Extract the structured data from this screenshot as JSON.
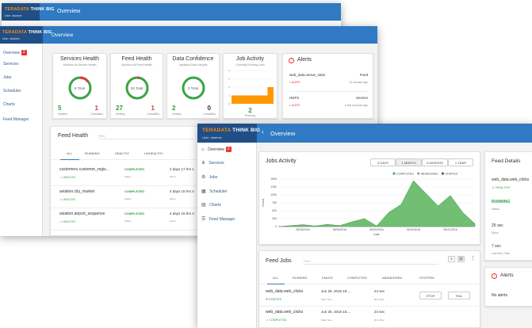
{
  "brand": {
    "name1": "TERADATA",
    "name2": "THINK BIG"
  },
  "user": "User: dladmin",
  "back_window": {
    "header_title": "Overview"
  },
  "mid_window": {
    "header_title": "Overview",
    "nav": [
      {
        "label": "Overview",
        "badge": "2"
      },
      {
        "label": "Services"
      },
      {
        "label": "Jobs"
      },
      {
        "label": "Scheduler"
      },
      {
        "label": "Charts"
      },
      {
        "label": "Feed Manager"
      }
    ],
    "services_health": {
      "title": "Services Health",
      "subtitle": "Monitors All Service Health",
      "center": "6 Total",
      "healthy": "5",
      "unhealthy": "1",
      "healthy_label": "Healthy",
      "unhealthy_label": "Unhealthy"
    },
    "feed_health_card": {
      "title": "Feed Health",
      "subtitle": "Monitors All Feed Health",
      "center": "28 Total",
      "healthy": "27",
      "unhealthy": "1",
      "healthy_label": "Healthy",
      "unhealthy_label": "Unhealthy"
    },
    "data_confidence": {
      "title": "Data Confidence",
      "subtitle": "Validates Data Integrity",
      "center": "2 Total",
      "healthy": "2",
      "unhealthy": "0",
      "healthy_label": "Healthy",
      "unhealthy_label": "Unhealthy"
    },
    "job_activity": {
      "title": "Job Activity",
      "subtitle": "Currently Running Jobs",
      "value": "2",
      "label": "Running"
    },
    "alerts": {
      "title": "Alerts",
      "items": [
        {
          "name": "web_data.venue_stats",
          "type": "Feed",
          "alert": "1 ALERT",
          "time": "10 minutes ago"
        },
        {
          "name": "HDFS",
          "type": "Service",
          "alert": "1 ALERT",
          "time": "a few seconds ago"
        }
      ]
    },
    "feed_health": {
      "title": "Feed Health",
      "filter_placeholder": "Filter",
      "tabs": [
        "ALL",
        "RUNNING",
        "HEALTHY",
        "UNHEALTHY"
      ],
      "rows": [
        {
          "name": "customers.customer_regis...",
          "health": "HEALTHY",
          "status": "COMPLETED",
          "status_label": "Status",
          "since": "2 days 17 hrs 1",
          "since_label": "Since"
        },
        {
          "name": "aviation.city_market",
          "health": "HEALTHY",
          "status": "COMPLETED",
          "status_label": "Status",
          "since": "4 days 15 hrs 4",
          "since_label": "Since"
        },
        {
          "name": "aviation.airport_sequence",
          "health": "HEALTHY",
          "status": "COMPLETED",
          "status_label": "Status",
          "since": "4 days 15 hrs 4",
          "since_label": "Since"
        }
      ]
    }
  },
  "front_window": {
    "header_title": "Overview",
    "nav": [
      {
        "label": "Overview",
        "badge": "2"
      },
      {
        "label": "Services"
      },
      {
        "label": "Jobs"
      },
      {
        "label": "Scheduler"
      },
      {
        "label": "Charts"
      },
      {
        "label": "Feed Manager"
      }
    ],
    "jobs_activity": {
      "title": "Jobs Activity",
      "ranges": [
        "3 DAYS",
        "1 MONTH",
        "3 MONTHS",
        "1 YEAR"
      ],
      "legend": [
        "COMPLETED",
        "ABANDONED",
        "STARTED"
      ]
    },
    "feed_jobs": {
      "title": "Feed Jobs",
      "filter_placeholder": "Filter",
      "tabs": [
        "ALL",
        "RUNNING",
        "FAILED",
        "COMPLETED",
        "ABANDONED",
        "STOPPED"
      ],
      "rows": [
        {
          "name": "web_data.web_clicks",
          "status": "STARTED",
          "start": "Jun 26, 2016 15:...",
          "start_label": "Start Time",
          "run": "24 sec",
          "run_label": "Run Time",
          "stop": "STOP",
          "fail": "FAIL"
        },
        {
          "name": "web_data.web_clicks",
          "status": "COMPLETED",
          "start": "Jun 26, 2016 15:...",
          "start_label": "Start Time",
          "run": "24 sec",
          "run_label": "Run Time"
        }
      ]
    },
    "feed_details": {
      "title": "Feed Details",
      "name": "web_data.web_clicks",
      "health": "HEALTHY",
      "status": "RUNNING",
      "status_label": "Status",
      "since": "25 sec",
      "since_label": "Since",
      "last_run": "7 sec",
      "last_run_label": "Last Run Time"
    },
    "alerts": {
      "title": "Alerts",
      "empty": "No alerts"
    }
  },
  "chart_data": {
    "type": "area",
    "title": "",
    "xlabel": "Date",
    "ylabel": "Count",
    "x": [
      "05/24/2016",
      "05/26/2016",
      "05/28/2016",
      "05/30/2016",
      "06/01/2016",
      "06/03/2016",
      "06/05/2016",
      "06/07/2016",
      "06/09/2016",
      "06/11/2016",
      "06/13/2016",
      "06/15/2016",
      "06/17/2016",
      "06/19/2016",
      "06/21/2016",
      "06/23/2016",
      "06/25/2016"
    ],
    "x_tick_labels": [
      "05/28/2016",
      "06/03/2016",
      "06/09/2016",
      "06/15/2016",
      "06/21/2016"
    ],
    "y_ticks": [
      0,
      250,
      500,
      750,
      1000,
      1250,
      1500
    ],
    "ylim": [
      0,
      1500
    ],
    "series": [
      {
        "name": "COMPLETED",
        "color": "#4caf50",
        "values": [
          0,
          30,
          60,
          20,
          70,
          30,
          150,
          250,
          20,
          450,
          700,
          1450,
          1050,
          650,
          980,
          450,
          90
        ]
      },
      {
        "name": "ABANDONED",
        "color": "#9e9e9e",
        "values": [
          0,
          0,
          0,
          0,
          0,
          0,
          0,
          0,
          0,
          0,
          0,
          0,
          0,
          0,
          0,
          0,
          0
        ]
      },
      {
        "name": "STARTED",
        "color": "#2e7d32",
        "values": [
          0,
          0,
          0,
          0,
          0,
          0,
          0,
          0,
          0,
          0,
          0,
          0,
          0,
          0,
          0,
          0,
          0
        ]
      }
    ]
  },
  "job_chart_data": {
    "type": "area",
    "y_ticks": [
      0,
      1,
      2,
      3,
      4
    ],
    "ylim": [
      0,
      4
    ],
    "series": [
      {
        "name": "Running",
        "color": "#ff9800",
        "values": [
          1,
          1,
          1,
          1,
          1,
          1,
          2,
          2
        ]
      }
    ]
  }
}
